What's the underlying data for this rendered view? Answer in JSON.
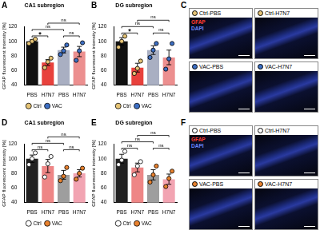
{
  "chart_data": [
    {
      "panel_label": "A",
      "type": "bar",
      "title": "CA1 subregion",
      "y_label": "GFAP fluorescent intensity [%]",
      "categories": [
        "PBS",
        "H7N7",
        "PBS",
        "H7N7"
      ],
      "colors": [
        "#111111",
        "#e8413c",
        "#a9afc2",
        "#ec8f8f"
      ],
      "ylim": [
        40,
        120
      ],
      "yticks": [
        40,
        60,
        80,
        100,
        120
      ],
      "legend": "bottom",
      "series": [
        {
          "name": "Ctrl",
          "color": "#e6c476",
          "values": [
            100,
            71,
            null,
            null
          ],
          "errors": [
            2,
            4,
            null,
            null
          ],
          "points": [
            [
              97,
              100,
              103
            ],
            [
              64,
              72,
              77
            ],
            null,
            null
          ]
        },
        {
          "name": "VAC",
          "color": "#3d6fc4",
          "values": [
            null,
            null,
            88,
            86
          ],
          "errors": [
            null,
            null,
            4,
            7
          ],
          "points": [
            null,
            null,
            [
              82,
              87,
              95
            ],
            [
              74,
              87,
              98
            ]
          ]
        }
      ],
      "comparisons": [
        {
          "pair": [
            0,
            1
          ],
          "label": "*"
        },
        {
          "pair": [
            2,
            3
          ],
          "label": "ns"
        },
        {
          "pair": [
            0,
            2
          ],
          "label": "ns"
        },
        {
          "pair": [
            1,
            3
          ],
          "label": "ns"
        }
      ]
    },
    {
      "panel_label": "B",
      "type": "bar",
      "title": "DG subregion",
      "y_label": "GFAP fluorescent intensity [%]",
      "categories": [
        "PBS",
        "H7N7",
        "PBS",
        "H7N7"
      ],
      "colors": [
        "#111111",
        "#e8413c",
        "#a9afc2",
        "#ec8f8f"
      ],
      "ylim": [
        40,
        120
      ],
      "yticks": [
        40,
        60,
        80,
        100,
        120
      ],
      "legend": "bottom",
      "series": [
        {
          "name": "Ctrl",
          "color": "#e6c476",
          "values": [
            100,
            64,
            null,
            null
          ],
          "errors": [
            5,
            6,
            null,
            null
          ],
          "points": [
            [
              92,
              100,
              107
            ],
            [
              56,
              63,
              73
            ],
            null,
            null
          ]
        },
        {
          "name": "VAC",
          "color": "#3d6fc4",
          "values": [
            null,
            null,
            88,
            78
          ],
          "errors": [
            null,
            null,
            6,
            10
          ],
          "points": [
            null,
            null,
            [
              78,
              88,
              97
            ],
            [
              62,
              76,
              97
            ]
          ]
        }
      ],
      "comparisons": [
        {
          "pair": [
            0,
            1
          ],
          "label": "*"
        },
        {
          "pair": [
            2,
            3
          ],
          "label": "ns"
        },
        {
          "pair": [
            0,
            2
          ],
          "label": "ns"
        },
        {
          "pair": [
            1,
            3
          ],
          "label": "ns"
        }
      ]
    },
    {
      "panel_label": "D",
      "type": "bar",
      "title": "CA1 subregion",
      "y_label": "GFAP fluorescent intensity [%]",
      "categories": [
        "PBS",
        "H7N7",
        "PBS",
        "H7N7"
      ],
      "colors": [
        "#222222",
        "#ee8686",
        "#9e9e9e",
        "#f2a4b2"
      ],
      "ylim": [
        40,
        120
      ],
      "yticks": [
        40,
        60,
        80,
        100,
        120
      ],
      "legend": "bottom",
      "series": [
        {
          "name": "Ctrl",
          "color": "#ffffff",
          "values": [
            100,
            90,
            null,
            null
          ],
          "errors": [
            5,
            9,
            null,
            null
          ],
          "points": [
            [
              92,
              100,
              108
            ],
            [
              75,
              93,
              103
            ],
            null,
            null
          ]
        },
        {
          "name": "VAC",
          "color": "#e8812e",
          "values": [
            null,
            null,
            78,
            80
          ],
          "errors": [
            null,
            null,
            6,
            5
          ],
          "points": [
            null,
            null,
            [
              70,
              76,
              88
            ],
            [
              72,
              80,
              87
            ]
          ]
        }
      ],
      "comparisons": [
        {
          "pair": [
            0,
            1
          ],
          "label": "ns"
        },
        {
          "pair": [
            2,
            3
          ],
          "label": "ns"
        },
        {
          "pair": [
            0,
            2
          ],
          "label": "ns"
        },
        {
          "pair": [
            1,
            3
          ],
          "label": "ns"
        }
      ]
    },
    {
      "panel_label": "E",
      "type": "bar",
      "title": "DG subregion",
      "y_label": "GFAP fluorescent intensity [%]",
      "categories": [
        "PBS",
        "H7N7",
        "PBS",
        "H7N7"
      ],
      "colors": [
        "#222222",
        "#ee8686",
        "#9e9e9e",
        "#f2a4b2"
      ],
      "ylim": [
        40,
        120
      ],
      "yticks": [
        40,
        60,
        80,
        100,
        120
      ],
      "legend": "bottom",
      "series": [
        {
          "name": "Ctrl",
          "color": "#ffffff",
          "values": [
            100,
            88,
            null,
            null
          ],
          "errors": [
            6,
            6,
            null,
            null
          ],
          "points": [
            [
              92,
              98,
              110
            ],
            [
              78,
              90,
              96
            ],
            null,
            null
          ]
        },
        {
          "name": "VAC",
          "color": "#e8812e",
          "values": [
            null,
            null,
            78,
            72
          ],
          "errors": [
            null,
            null,
            7,
            7
          ],
          "points": [
            null,
            null,
            [
              68,
              78,
              90
            ],
            [
              62,
              73,
              83
            ]
          ]
        }
      ],
      "comparisons": [
        {
          "pair": [
            0,
            1
          ],
          "label": "ns"
        },
        {
          "pair": [
            2,
            3
          ],
          "label": "ns"
        },
        {
          "pair": [
            0,
            2
          ],
          "label": "ns"
        },
        {
          "pair": [
            1,
            3
          ],
          "label": "ns"
        }
      ]
    }
  ],
  "image_panels": [
    {
      "panel_label": "C",
      "stains": [
        {
          "name": "GFAP",
          "color": "#ff3b30"
        },
        {
          "name": "DAPI",
          "color": "#6a86ff"
        }
      ],
      "tiles": [
        {
          "title": "Ctrl-PBS",
          "color": "#e6c476"
        },
        {
          "title": "Ctrl-H7N7",
          "color": "#e6c476"
        },
        {
          "title": "VAC-PBS",
          "color": "#3d6fc4"
        },
        {
          "title": "VAC-H7N7",
          "color": "#3d6fc4"
        }
      ]
    },
    {
      "panel_label": "F",
      "stains": [
        {
          "name": "GFAP",
          "color": "#ff3b30"
        },
        {
          "name": "DAPI",
          "color": "#6a86ff"
        }
      ],
      "tiles": [
        {
          "title": "Ctrl-PBS",
          "color": "#ffffff"
        },
        {
          "title": "Ctrl-H7N7",
          "color": "#ffffff"
        },
        {
          "title": "VAC-PBS",
          "color": "#e8812e"
        },
        {
          "title": "VAC-H7N7",
          "color": "#e8812e"
        }
      ]
    }
  ]
}
